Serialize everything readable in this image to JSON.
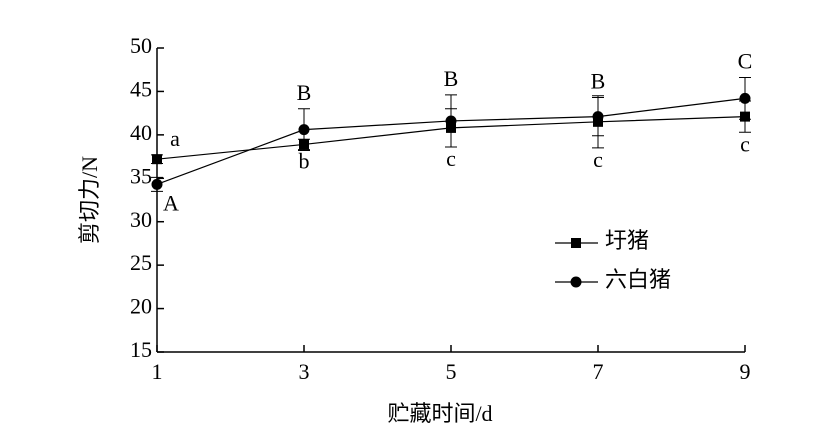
{
  "chart_data": {
    "type": "line",
    "x_label": "贮藏时间/d",
    "y_label": "剪切力/N",
    "x": [
      1,
      3,
      5,
      7,
      9
    ],
    "xlim": [
      1,
      9
    ],
    "xticks": [
      1,
      3,
      5,
      7,
      9
    ],
    "ylim": [
      15,
      50
    ],
    "yticks": [
      15,
      20,
      25,
      30,
      35,
      40,
      45,
      50
    ],
    "series": [
      {
        "name": "圩猪",
        "color": "#000000",
        "marker": "square",
        "values": [
          37.2,
          38.9,
          40.8,
          41.5,
          42.1
        ],
        "errors": [
          0.5,
          0.6,
          2.2,
          3.0,
          1.8
        ],
        "labels": [
          "a",
          "b",
          "c",
          "c",
          "c"
        ]
      },
      {
        "name": "六白猪",
        "color": "#000000",
        "marker": "circle",
        "values": [
          34.3,
          40.6,
          41.6,
          42.1,
          44.2
        ],
        "errors": [
          0.8,
          2.4,
          3.0,
          2.2,
          2.4
        ],
        "labels": [
          "A",
          "B",
          "B",
          "B",
          "C"
        ]
      }
    ],
    "legend": "center-right"
  }
}
